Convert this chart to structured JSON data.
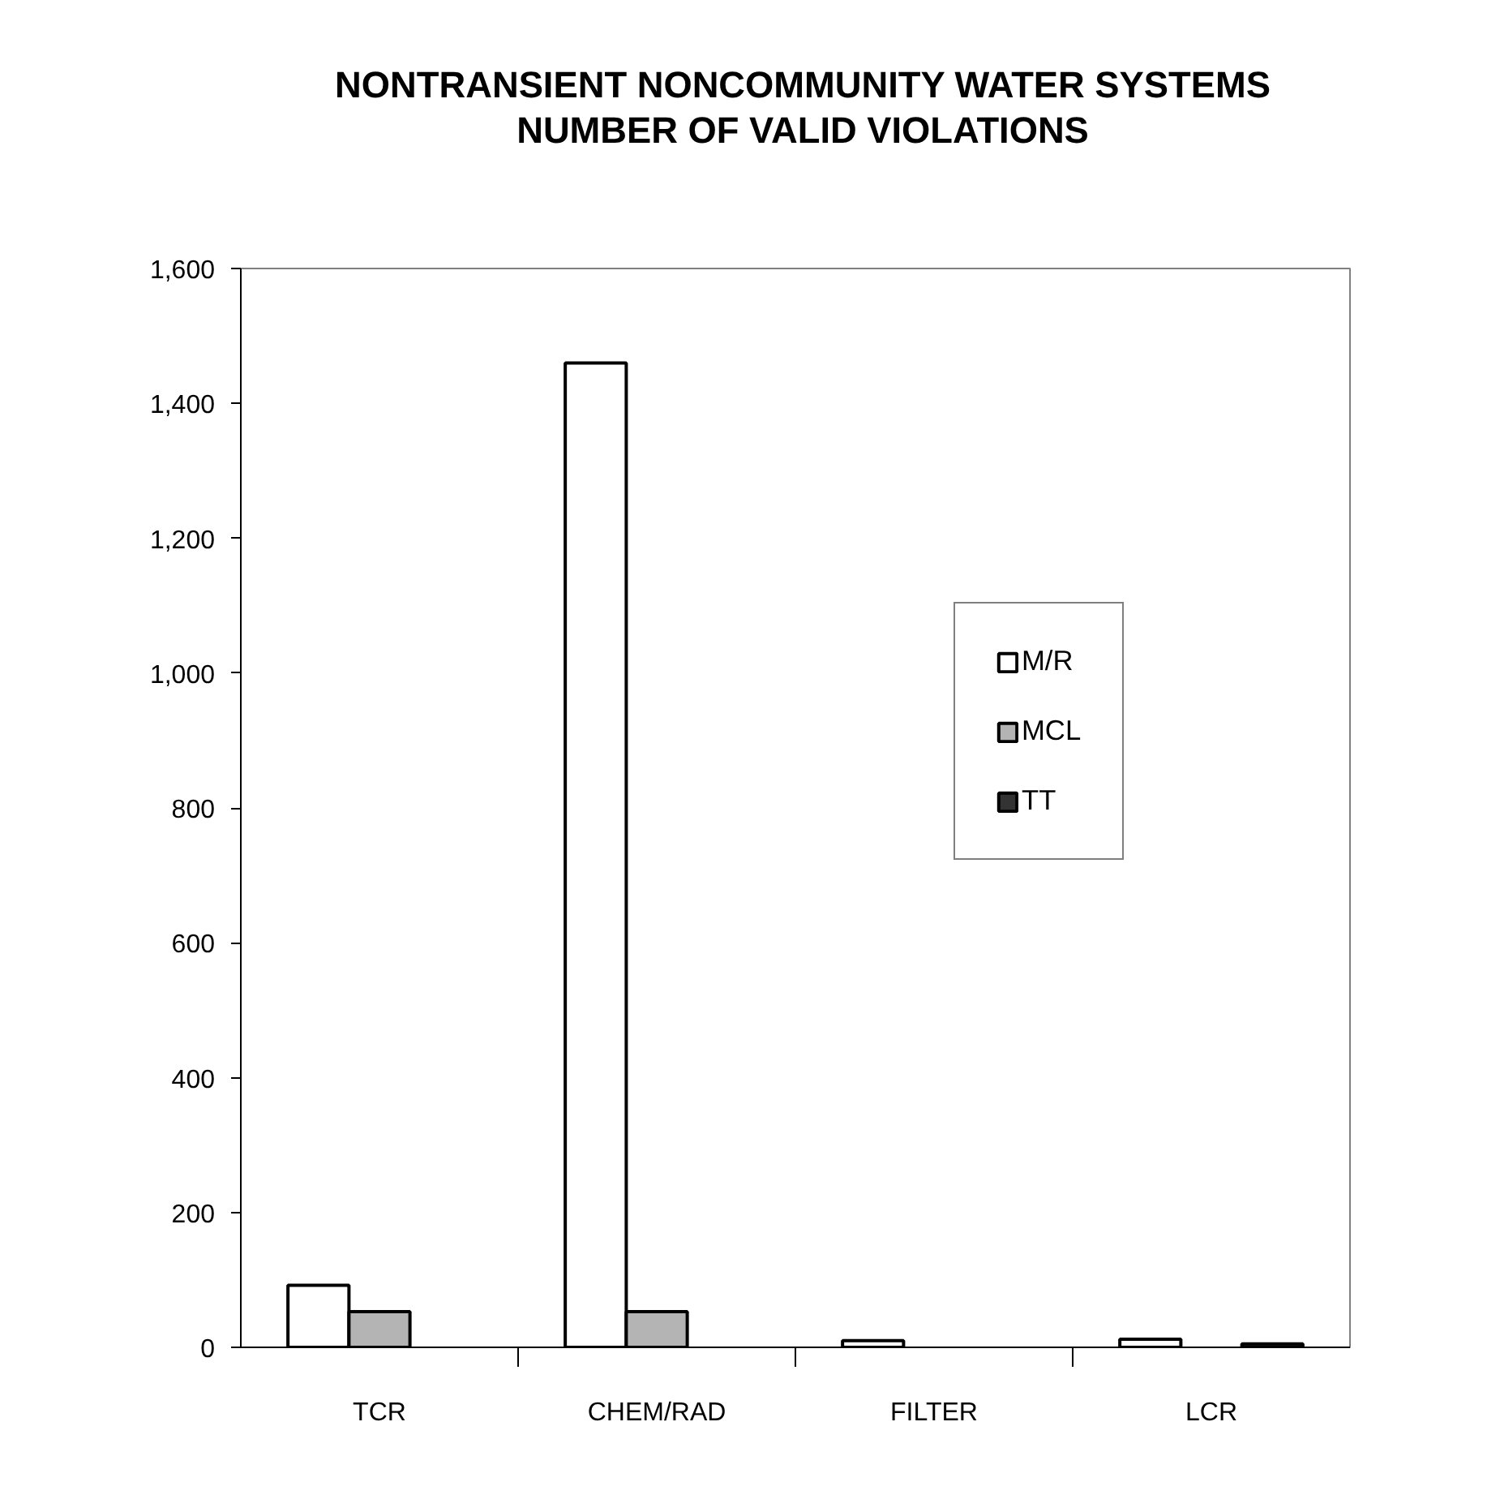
{
  "chart_data": {
    "type": "bar",
    "title": "NONTRANSIENT NONCOMMUNITY WATER SYSTEMS\nNUMBER OF VALID VIOLATIONS",
    "categories": [
      "TCR",
      "CHEM/RAD",
      "FILTER",
      "LCR"
    ],
    "series": [
      {
        "name": "M/R",
        "color": "#ffffff",
        "values": [
          92,
          1460,
          10,
          12
        ]
      },
      {
        "name": "MCL",
        "color": "#b4b4b4",
        "values": [
          53,
          53,
          null,
          null
        ]
      },
      {
        "name": "TT",
        "color": "#333333",
        "values": [
          null,
          null,
          null,
          5
        ]
      }
    ],
    "ylim": [
      0,
      1600
    ],
    "yticks": [
      0,
      200,
      400,
      600,
      800,
      {
        "value": 1000,
        "label": "1,000"
      },
      {
        "value": 1200,
        "label": "1,200"
      },
      {
        "value": 1400,
        "label": "1,400"
      },
      {
        "value": 1600,
        "label": "1,600"
      }
    ],
    "grid": false,
    "legend": "right"
  }
}
